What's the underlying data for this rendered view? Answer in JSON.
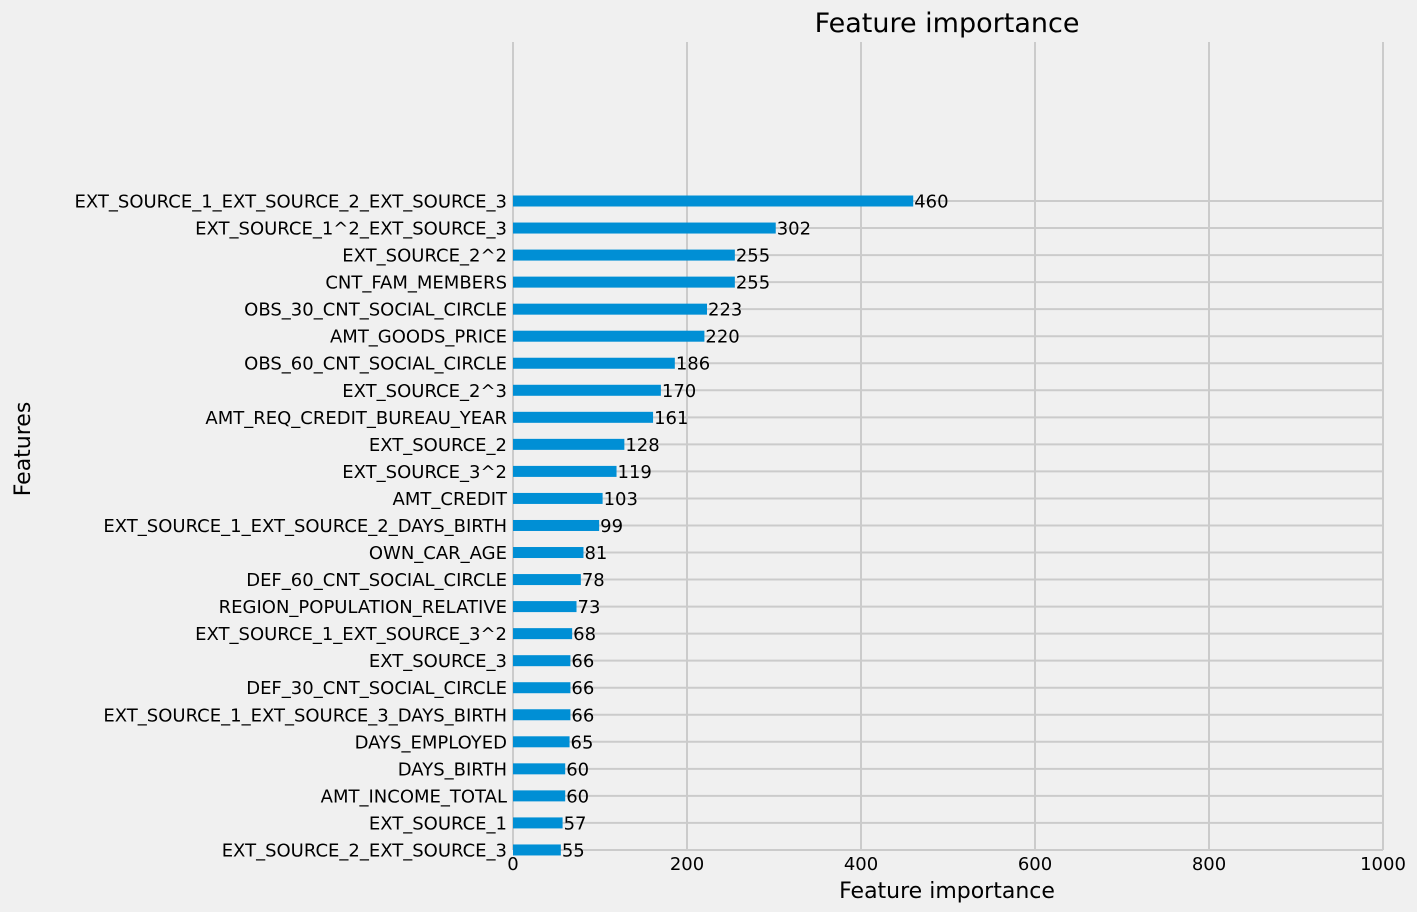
{
  "chart_data": {
    "type": "bar",
    "orientation": "horizontal",
    "title": "Feature importance",
    "xlabel": "Feature importance",
    "ylabel": "Features",
    "xlim": [
      0,
      1000
    ],
    "x_ticks": [
      0,
      200,
      400,
      600,
      800,
      1000
    ],
    "grid": true,
    "bar_color": "#008fd5",
    "background_color": "#f0f0f0",
    "grid_color": "#cbcbcb",
    "categories": [
      "EXT_SOURCE_1_EXT_SOURCE_2_EXT_SOURCE_3",
      "EXT_SOURCE_1^2_EXT_SOURCE_3",
      "EXT_SOURCE_2^2",
      "CNT_FAM_MEMBERS",
      "OBS_30_CNT_SOCIAL_CIRCLE",
      "AMT_GOODS_PRICE",
      "OBS_60_CNT_SOCIAL_CIRCLE",
      "EXT_SOURCE_2^3",
      "AMT_REQ_CREDIT_BUREAU_YEAR",
      "EXT_SOURCE_2",
      "EXT_SOURCE_3^2",
      "AMT_CREDIT",
      "EXT_SOURCE_1_EXT_SOURCE_2_DAYS_BIRTH",
      "OWN_CAR_AGE",
      "DEF_60_CNT_SOCIAL_CIRCLE",
      "REGION_POPULATION_RELATIVE",
      "EXT_SOURCE_1_EXT_SOURCE_3^2",
      "EXT_SOURCE_3",
      "DEF_30_CNT_SOCIAL_CIRCLE",
      "EXT_SOURCE_1_EXT_SOURCE_3_DAYS_BIRTH",
      "DAYS_EMPLOYED",
      "DAYS_BIRTH",
      "AMT_INCOME_TOTAL",
      "EXT_SOURCE_1",
      "EXT_SOURCE_2_EXT_SOURCE_3"
    ],
    "values": [
      460,
      302,
      255,
      255,
      223,
      220,
      186,
      170,
      161,
      128,
      119,
      103,
      99,
      81,
      78,
      73,
      68,
      66,
      66,
      66,
      65,
      60,
      60,
      57,
      55
    ]
  }
}
